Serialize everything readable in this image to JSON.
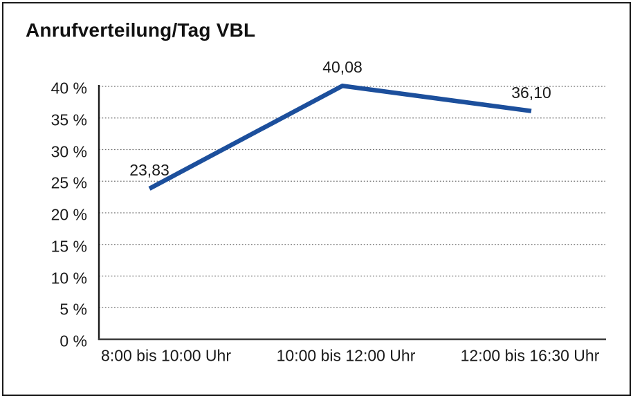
{
  "window": {
    "background_color": "#ffffff",
    "border_color": "#1a1a1a"
  },
  "chart_data": {
    "type": "line",
    "title": "Anrufverteilung/Tag VBL",
    "categories": [
      "8:00 bis 10:00 Uhr",
      "10:00 bis 12:00 Uhr",
      "12:00 bis 16:30 Uhr"
    ],
    "values": [
      23.83,
      40.08,
      36.1
    ],
    "point_labels": [
      "23,83",
      "40,08",
      "36,10"
    ],
    "y_tick_labels": [
      "40 %",
      "35 %",
      "30 %",
      "25 %",
      "20 %",
      "15 %",
      "10 %",
      "5 %",
      "0 %"
    ],
    "ylim": [
      0,
      40
    ],
    "y_tick_step": 5,
    "xlabel": "",
    "ylabel": "",
    "grid": "horizontal-dotted",
    "legend_position": "none",
    "series_color": "#1C4F9C",
    "gridline_color": "#6e6e6e",
    "axis_color": "#1a1a1a",
    "text_color": "#1a1a1a"
  }
}
